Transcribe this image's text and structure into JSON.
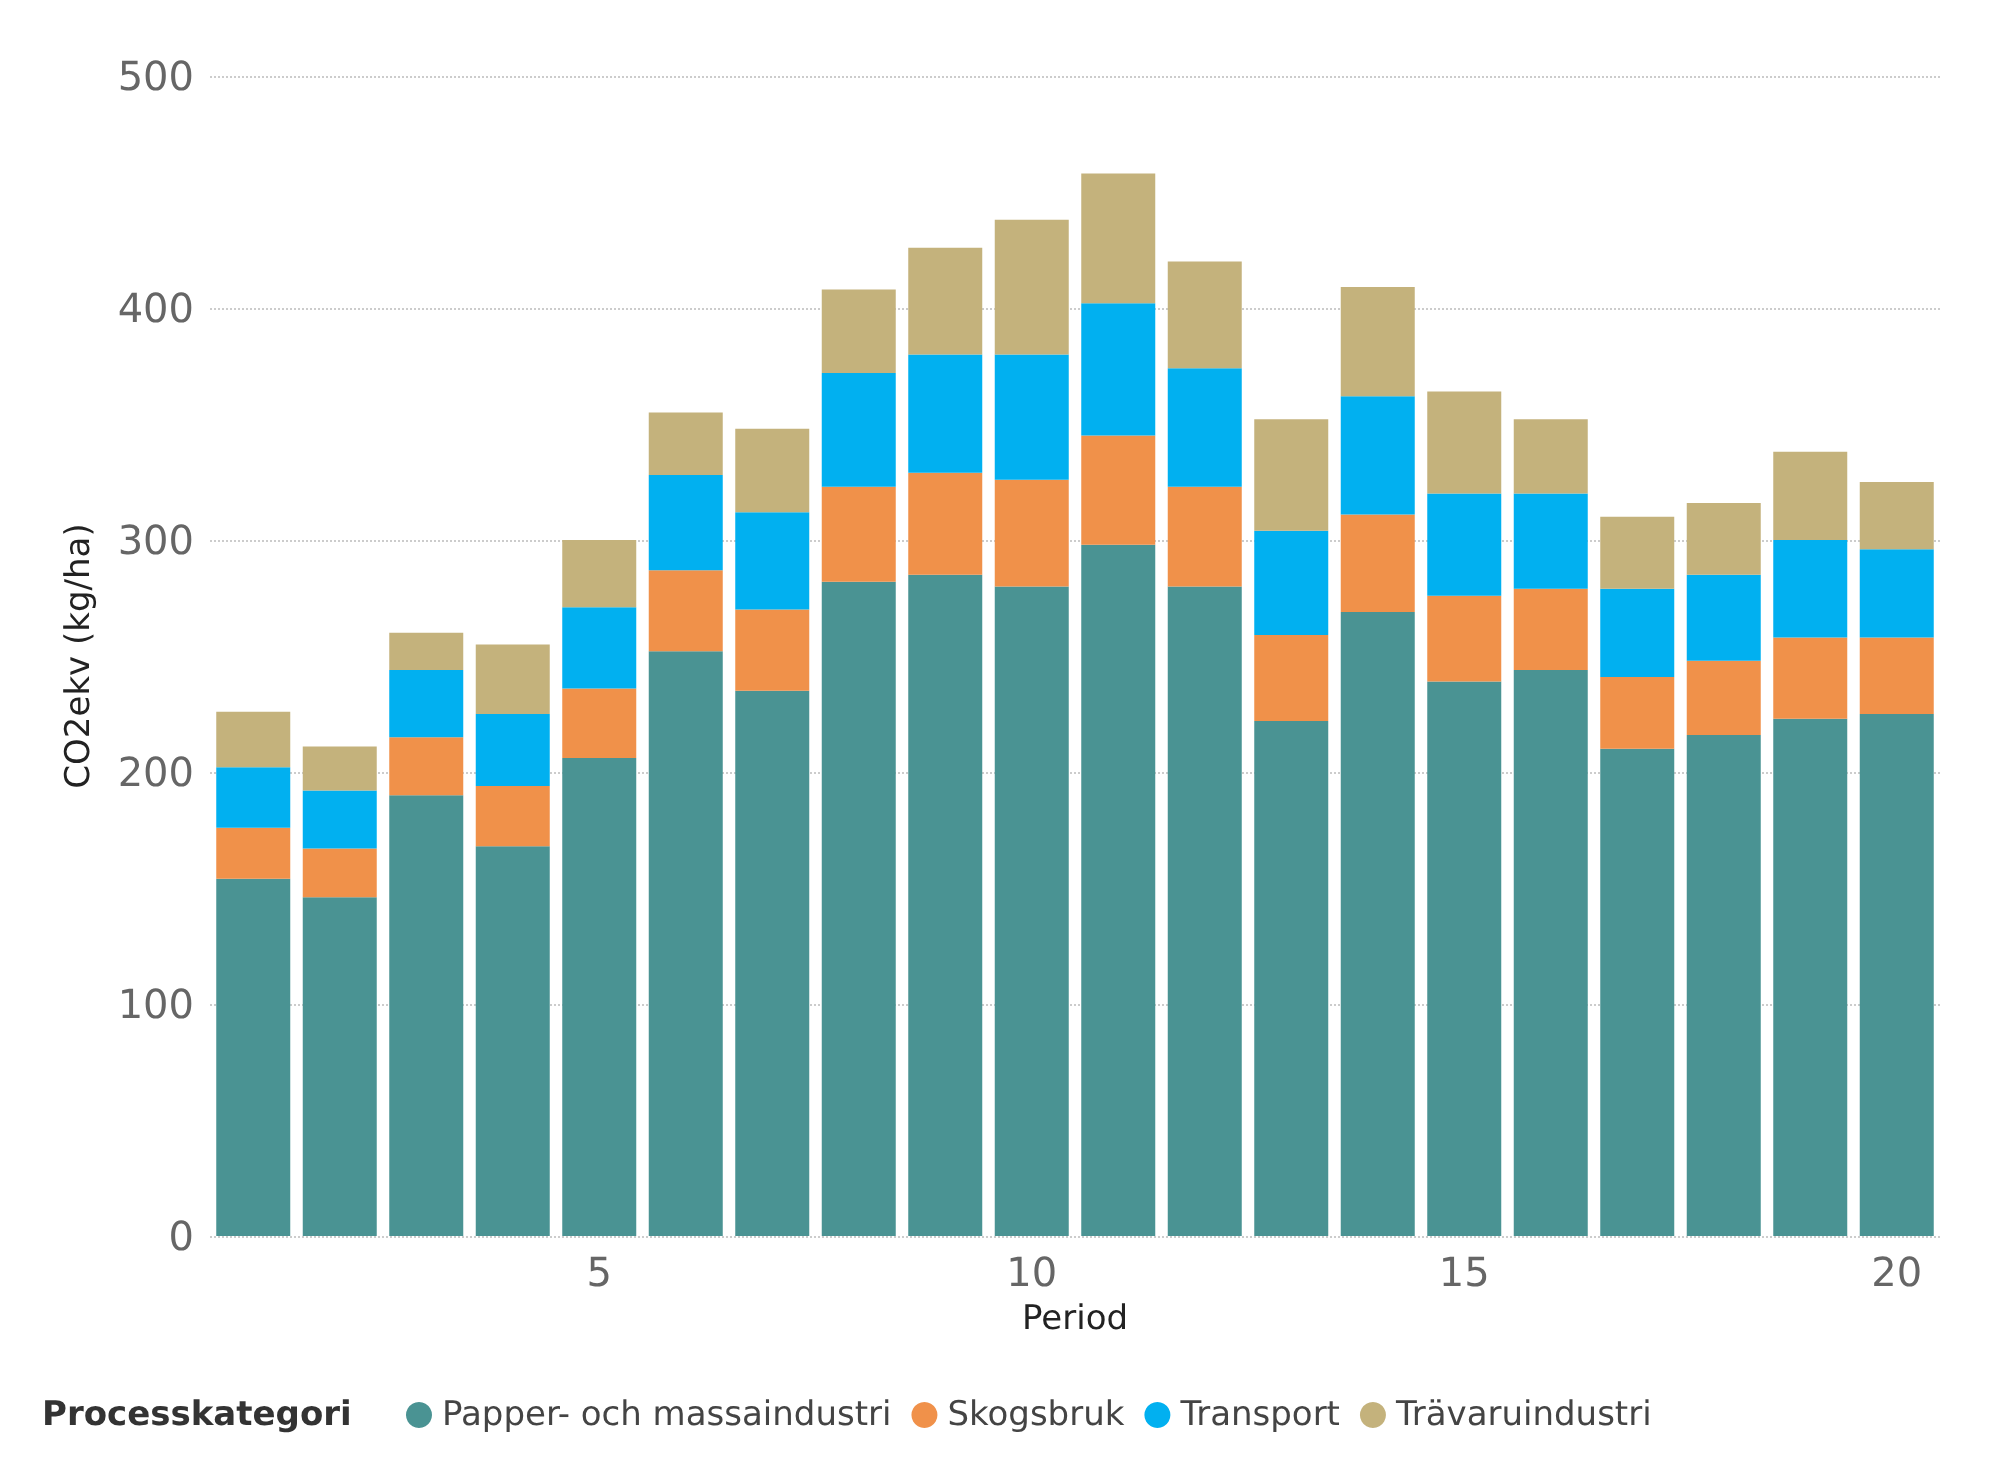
{
  "chart_data": {
    "type": "bar",
    "stacked": true,
    "xlabel": "Period",
    "ylabel": "CO2ekv (kg/ha)",
    "legend_title": "Processkategori",
    "categories": [
      null,
      null,
      null,
      null,
      "5",
      null,
      null,
      null,
      null,
      "10",
      null,
      null,
      null,
      null,
      "15",
      null,
      null,
      null,
      null,
      "20"
    ],
    "series": [
      {
        "name": "Papper- och massaindustri",
        "color": "#4a9393",
        "values": [
          154,
          146,
          190,
          168,
          206,
          252,
          235,
          282,
          285,
          280,
          298,
          280,
          222,
          269,
          239,
          244,
          210,
          216,
          223,
          225
        ]
      },
      {
        "name": "Skogsbruk",
        "color": "#f0914a",
        "values": [
          22,
          21,
          25,
          26,
          30,
          35,
          35,
          41,
          44,
          46,
          47,
          43,
          37,
          42,
          37,
          35,
          31,
          32,
          35,
          33
        ]
      },
      {
        "name": "Transport",
        "color": "#01b0f0",
        "values": [
          26,
          25,
          29,
          31,
          35,
          41,
          42,
          49,
          51,
          54,
          57,
          51,
          45,
          51,
          44,
          41,
          38,
          37,
          42,
          38
        ]
      },
      {
        "name": "Trävaruindustri",
        "color": "#c4b27c",
        "values": [
          24,
          19,
          16,
          30,
          29,
          27,
          36,
          36,
          46,
          58,
          56,
          46,
          48,
          47,
          44,
          32,
          31,
          31,
          38,
          29
        ]
      }
    ],
    "ylim": [
      0,
      500
    ],
    "yticks": [
      0,
      100,
      200,
      300,
      400,
      500
    ],
    "grid": "y",
    "legend": "bottom left"
  }
}
